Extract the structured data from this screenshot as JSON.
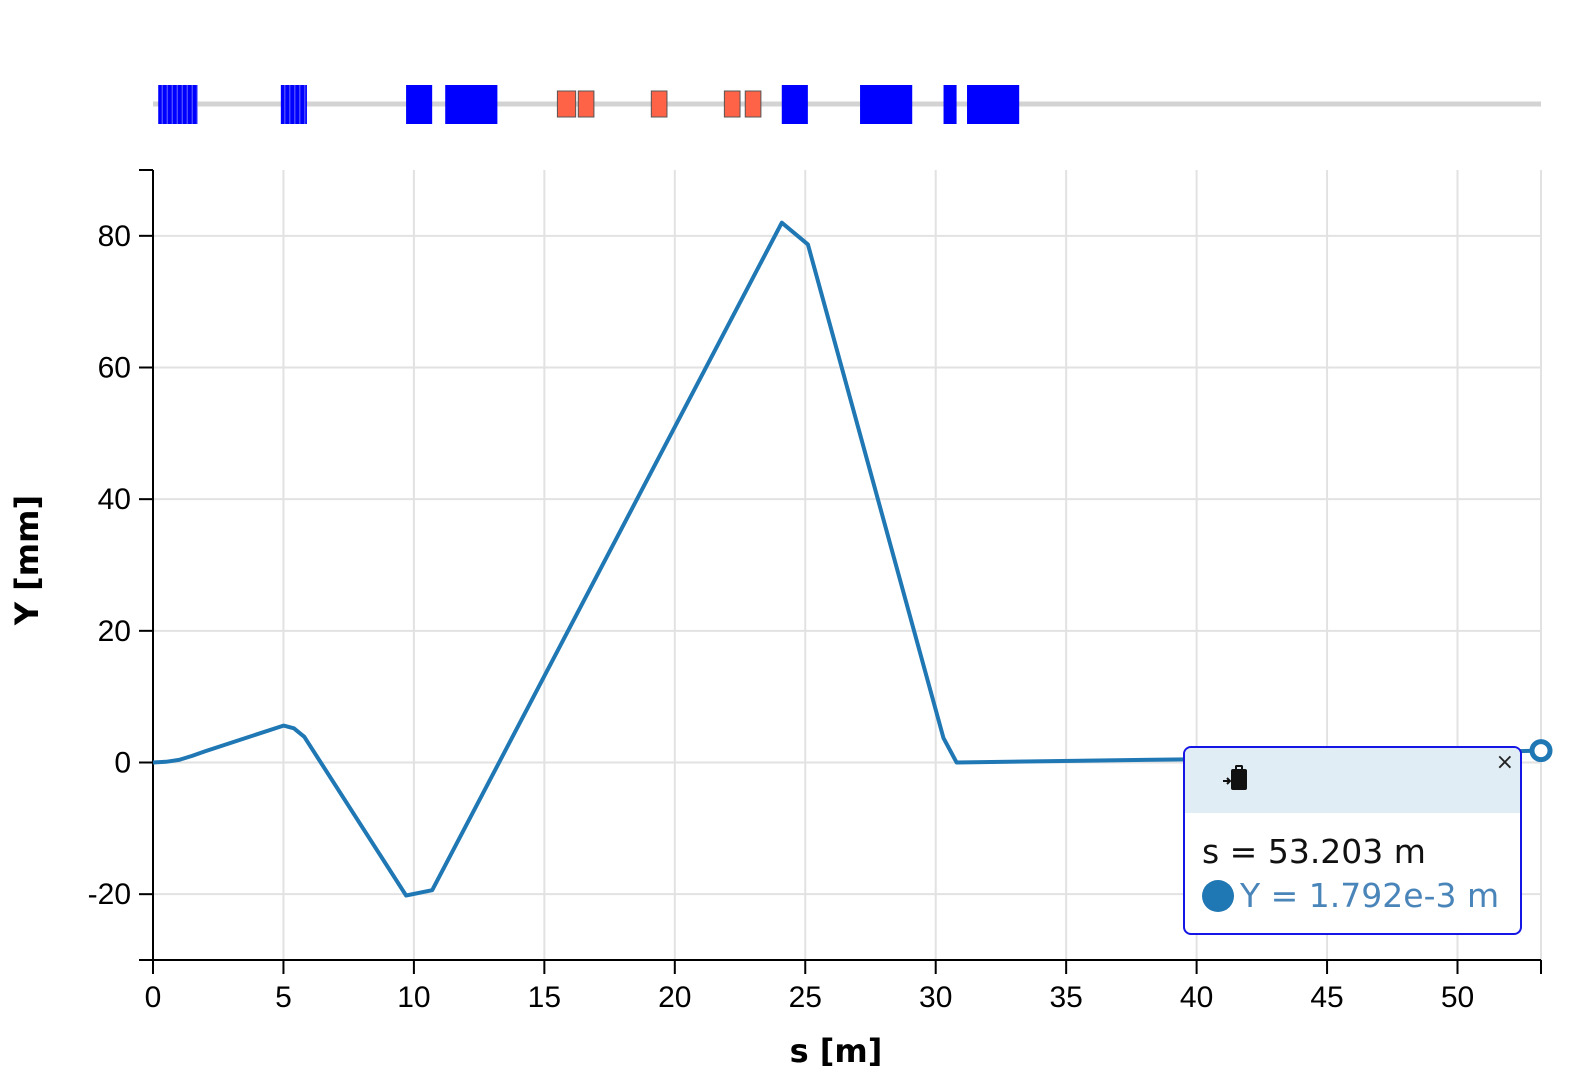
{
  "chart_data": {
    "type": "line",
    "xlabel": "s [m]",
    "ylabel": "Y [mm]",
    "xlim": [
      0,
      53.2
    ],
    "ylim": [
      -30,
      90
    ],
    "xticks": [
      "0",
      "5",
      "10",
      "15",
      "20",
      "25",
      "30",
      "35",
      "40",
      "45",
      "50"
    ],
    "yticks": [
      "-20",
      "0",
      "20",
      "40",
      "60",
      "80"
    ],
    "grid": true,
    "series": [
      {
        "color": "#1f77b4",
        "x": [
          0,
          0.5,
          1.0,
          1.5,
          2.0,
          5.0,
          5.4,
          5.8,
          9.7,
          10.7,
          24.1,
          25.1,
          30.3,
          30.8,
          40.0,
          53.2
        ],
        "y": [
          0,
          0.1,
          0.4,
          1.0,
          1.7,
          5.6,
          5.2,
          3.9,
          -20.2,
          -19.4,
          82.0,
          78.7,
          3.7,
          0.0,
          0.5,
          1.8
        ]
      }
    ],
    "lattice": {
      "blue_color": "#0000ff",
      "red_color": "#ff6347",
      "elements": [
        {
          "kind": "blue",
          "s0": 0.2,
          "s1": 1.7,
          "striped": true
        },
        {
          "kind": "blue",
          "s0": 4.9,
          "s1": 5.9,
          "striped": true
        },
        {
          "kind": "blue",
          "s0": 9.7,
          "s1": 10.7
        },
        {
          "kind": "blue",
          "s0": 11.2,
          "s1": 13.2
        },
        {
          "kind": "red",
          "s0": 15.5,
          "s1": 16.2
        },
        {
          "kind": "red",
          "s0": 16.3,
          "s1": 16.9
        },
        {
          "kind": "red",
          "s0": 19.1,
          "s1": 19.7
        },
        {
          "kind": "red",
          "s0": 21.9,
          "s1": 22.5
        },
        {
          "kind": "red",
          "s0": 22.7,
          "s1": 23.3
        },
        {
          "kind": "blue",
          "s0": 24.1,
          "s1": 25.1
        },
        {
          "kind": "blue",
          "s0": 27.1,
          "s1": 29.1
        },
        {
          "kind": "blue",
          "s0": 30.3,
          "s1": 30.8
        },
        {
          "kind": "blue",
          "s0": 31.2,
          "s1": 33.2
        }
      ]
    },
    "hover_point": {
      "x": 53.2,
      "y": 1.8
    }
  },
  "tooltip": {
    "s_text": "s = 53.203 m",
    "y_text": "Y = 1.792e-3 m",
    "close_label": "×",
    "copy_icon": "clipboard-copy-icon",
    "series_color": "#1f77b4"
  }
}
